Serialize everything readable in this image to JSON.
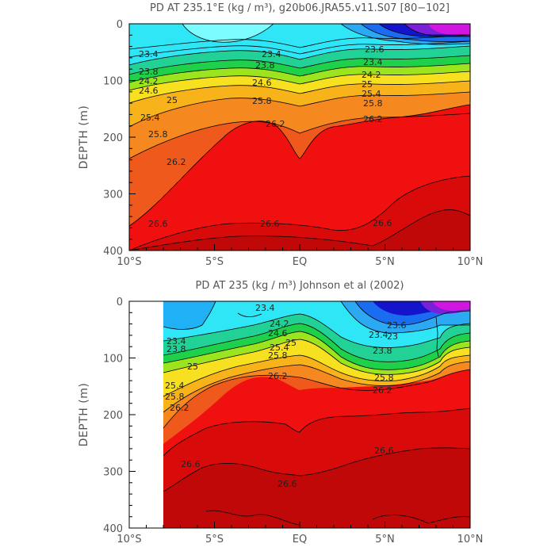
{
  "chart_data": [
    {
      "type": "contour",
      "title": "PD AT 235.1°E (kg / m³), g20b06.JRA55.v11.S07 [80−102]",
      "xlabel": "",
      "ylabel": "DEPTH (m)",
      "x_ticks": [
        "10°S",
        "5°S",
        "EQ",
        "5°N",
        "10°N"
      ],
      "y_ticks": [
        "0",
        "100",
        "200",
        "300",
        "400"
      ],
      "xlim": [
        -10,
        10
      ],
      "ylim": [
        400,
        0
      ],
      "contour_interval": 0.2,
      "contour_labels": [
        "23.4",
        "23.4",
        "23.6",
        "23.8",
        "23.8",
        "24.2",
        "24.6",
        "24.6",
        "25",
        "25.4",
        "25.8",
        "25.8",
        "25.8",
        "26.2",
        "26.2",
        "26.2",
        "26.6",
        "26.6",
        "26.6",
        "23.4",
        "24.2",
        "25",
        "25.4"
      ],
      "isopycnal_depths": {
        "lat": [
          -10,
          -8,
          -6,
          -4,
          -2,
          0,
          2,
          4,
          6,
          8,
          10
        ],
        "23.4": [
          60,
          55,
          42,
          35,
          38,
          45,
          35,
          15,
          5,
          2,
          2
        ],
        "23.8": [
          82,
          76,
          66,
          60,
          62,
          68,
          62,
          48,
          42,
          40,
          38
        ],
        "24.6": [
          112,
          104,
          92,
          88,
          92,
          100,
          90,
          75,
          70,
          66,
          62
        ],
        "25.4": [
          160,
          146,
          125,
          112,
          118,
          130,
          115,
          102,
          96,
          92,
          88
        ],
        "26.2": [
          255,
          220,
          175,
          160,
          165,
          200,
          175,
          150,
          150,
          145,
          140
        ],
        "26.6": [
          370,
          360,
          350,
          348,
          350,
          352,
          355,
          358,
          320,
          295,
          310
        ]
      }
    },
    {
      "type": "contour",
      "title": "PD AT 235 (kg / m³) Johnson et al (2002)",
      "xlabel": "",
      "ylabel": "DEPTH (m)",
      "x_ticks": [
        "10°S",
        "5°S",
        "EQ",
        "5°N",
        "10°N"
      ],
      "y_ticks": [
        "0",
        "100",
        "200",
        "300",
        "400"
      ],
      "xlim": [
        -10,
        10
      ],
      "ylim": [
        400,
        0
      ],
      "data_xlim": [
        -8,
        10
      ],
      "contour_interval": 0.2,
      "contour_labels": [
        "23.4",
        "23.4",
        "23.4",
        "23.8",
        "23.8",
        "24.2",
        "24.6",
        "25",
        "25",
        "25.4",
        "25.4",
        "25.8",
        "25.8",
        "25.8",
        "26.2",
        "26.2",
        "26.2",
        "26.6",
        "26.6",
        "26.6",
        "23.6",
        "23"
      ],
      "isopycnal_depths": {
        "lat": [
          -8,
          -6,
          -4,
          -2,
          0,
          2,
          4,
          5,
          6,
          8,
          9,
          10
        ],
        "23.4": [
          68,
          65,
          55,
          40,
          30,
          40,
          50,
          42,
          40,
          40,
          20,
          25
        ],
        "23.8": [
          85,
          82,
          75,
          62,
          50,
          62,
          80,
          80,
          75,
          60,
          45,
          50
        ],
        "24.6": [
          108,
          98,
          88,
          75,
          62,
          78,
          100,
          102,
          95,
          80,
          65,
          62
        ],
        "25.4": [
          165,
          140,
          110,
          92,
          75,
          100,
          122,
          120,
          110,
          95,
          78,
          72
        ],
        "26.2": [
          240,
          205,
          150,
          120,
          125,
          140,
          150,
          148,
          135,
          120,
          100,
          98
        ],
        "26.6": [
          340,
          330,
          310,
          320,
          320,
          310,
          290,
          280,
          270,
          250,
          240,
          240
        ]
      }
    }
  ]
}
